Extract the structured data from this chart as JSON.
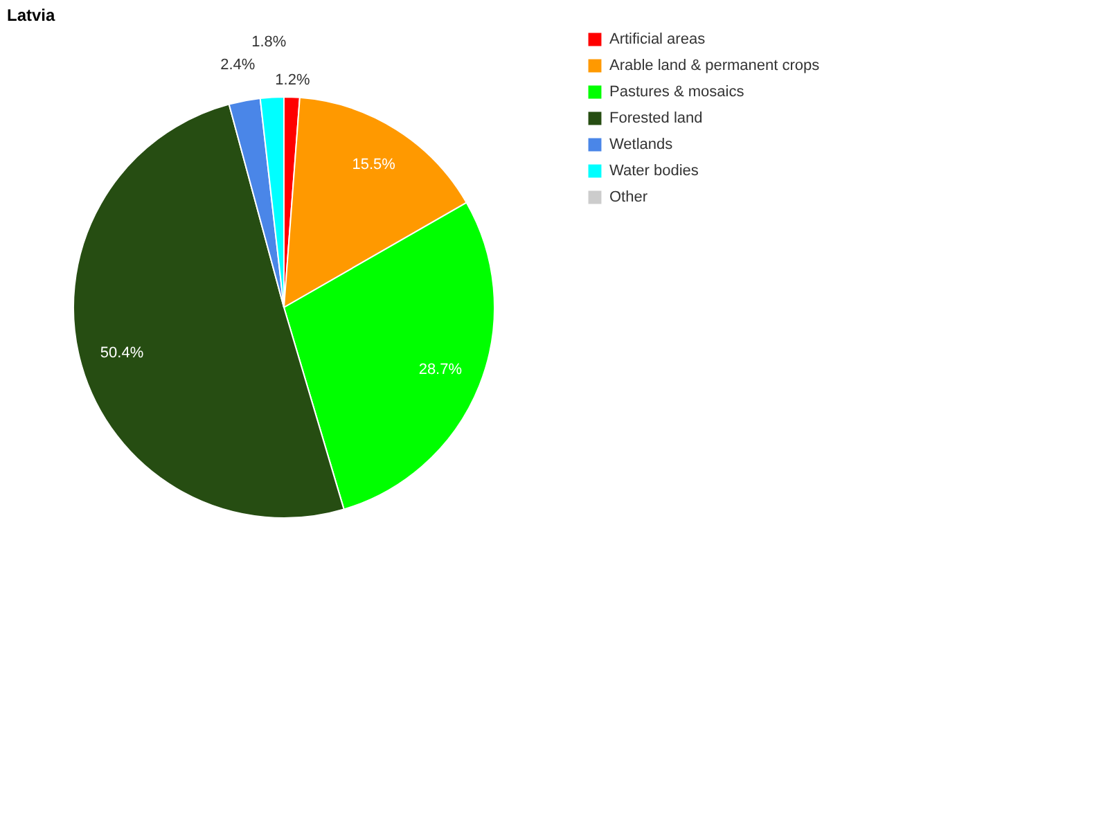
{
  "chart_data": {
    "type": "pie",
    "title": "Latvia",
    "categories": [
      "Artificial areas",
      "Arable land & permanent crops",
      "Pastures & mosaics",
      "Forested land",
      "Wetlands",
      "Water bodies",
      "Other"
    ],
    "values": [
      1.2,
      15.5,
      28.7,
      50.4,
      2.4,
      1.8,
      0
    ],
    "colors": [
      "#ff0000",
      "#ff9900",
      "#00ff00",
      "#264d12",
      "#4a86e8",
      "#00ffff",
      "#cccccc"
    ],
    "value_labels": [
      "1.2%",
      "15.5%",
      "28.7%",
      "50.4%",
      "2.4%",
      "1.8%",
      null
    ],
    "legend": "top right"
  }
}
